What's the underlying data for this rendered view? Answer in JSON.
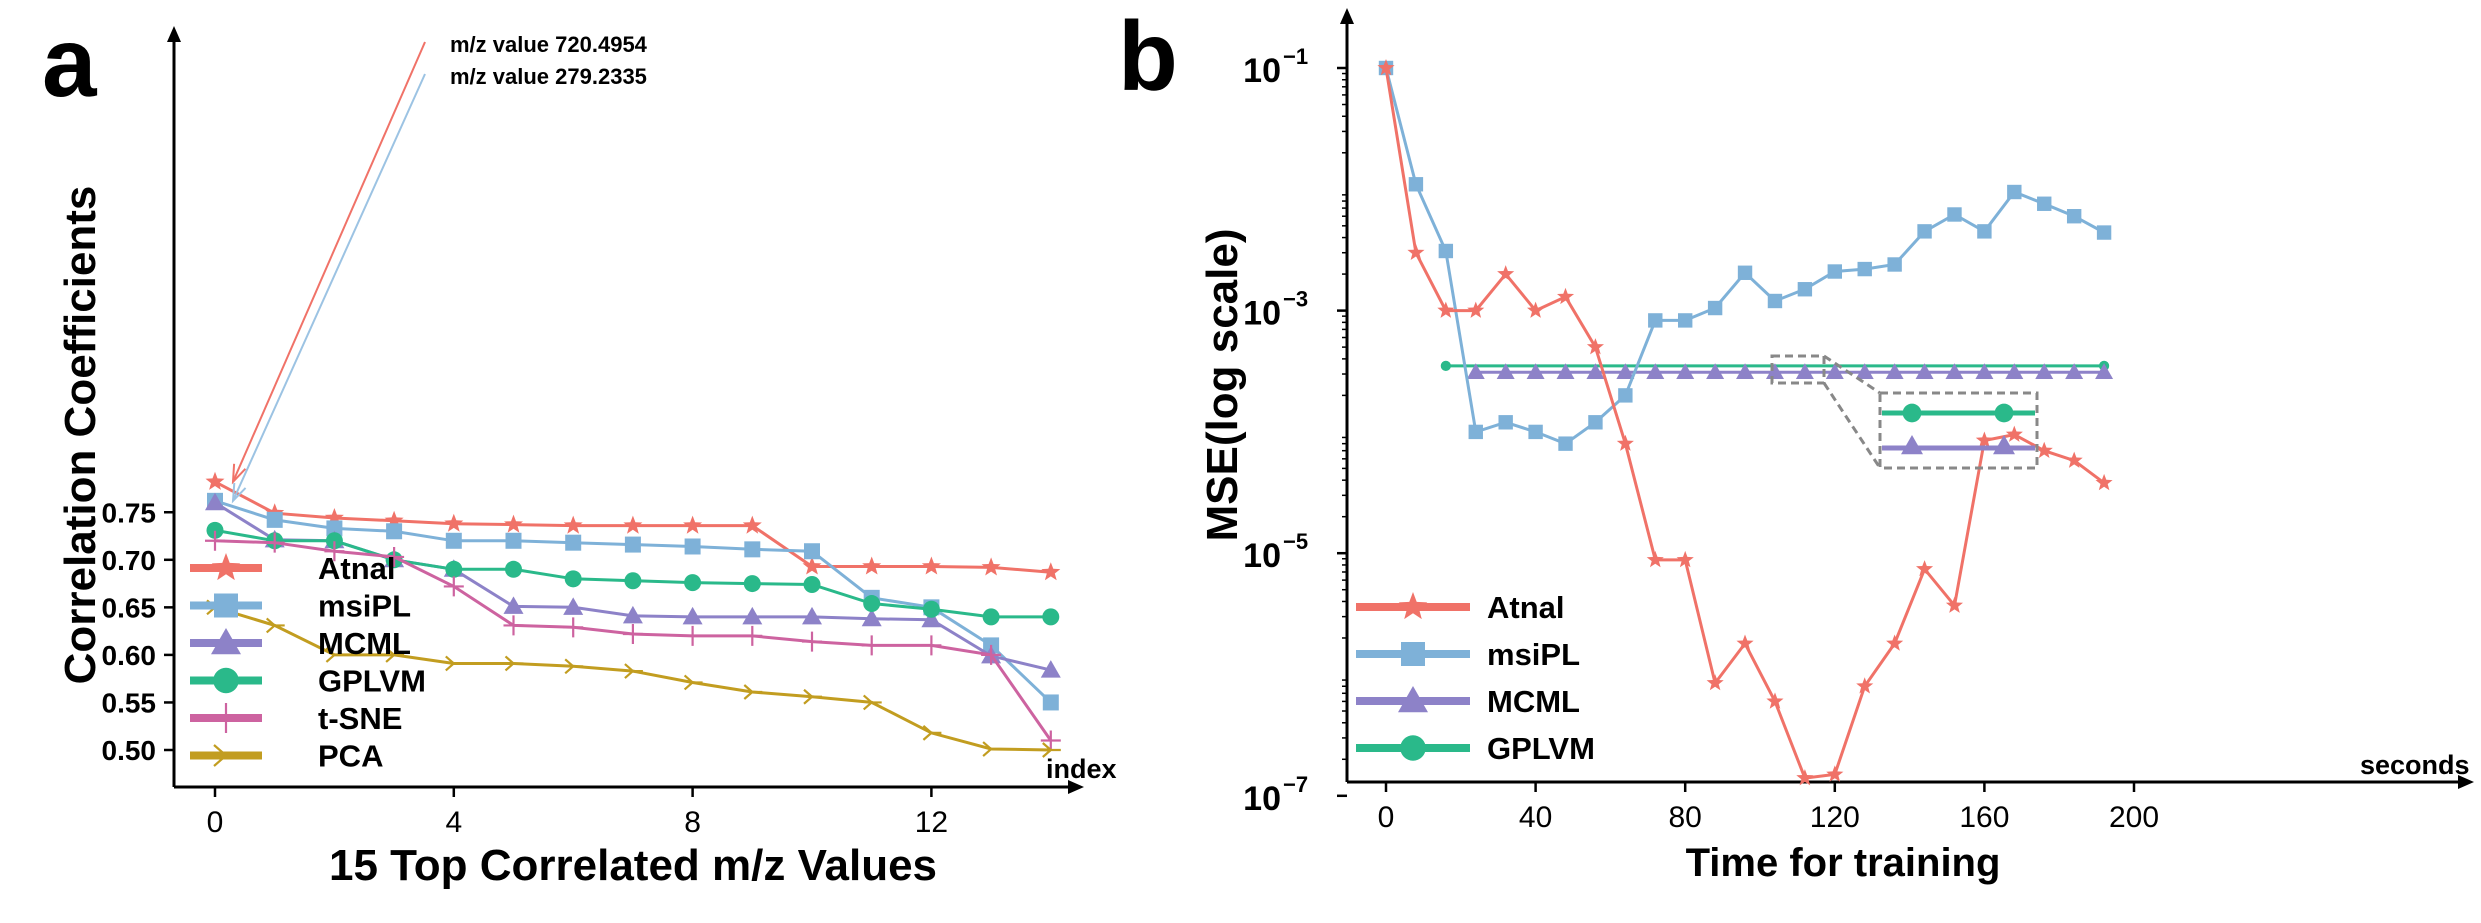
{
  "chart_data": [
    {
      "panel": "a",
      "type": "line",
      "xlabel": "15 Top Correlated m/z Values",
      "ylabel": "Correlation Coefficients",
      "x_end_label": "index",
      "xlim": [
        0,
        14
      ],
      "ylim": [
        0.497,
        0.79
      ],
      "xticks": [
        0,
        4,
        8,
        12
      ],
      "yticks": [
        0.5,
        0.55,
        0.6,
        0.65,
        0.7,
        0.75
      ],
      "x": [
        0,
        1,
        2,
        3,
        4,
        5,
        6,
        7,
        8,
        9,
        10,
        11,
        12,
        13,
        14
      ],
      "series": [
        {
          "name": "Atnal",
          "color": "#f07268",
          "marker": "star",
          "values": [
            0.782,
            0.749,
            0.744,
            0.741,
            0.738,
            0.737,
            0.736,
            0.736,
            0.736,
            0.736,
            0.693,
            0.693,
            0.693,
            0.692,
            0.687
          ]
        },
        {
          "name": "msiPL",
          "color": "#7eb1d8",
          "marker": "square",
          "values": [
            0.762,
            0.742,
            0.733,
            0.73,
            0.72,
            0.72,
            0.718,
            0.716,
            0.714,
            0.711,
            0.709,
            0.66,
            0.65,
            0.61,
            0.55
          ]
        },
        {
          "name": "MCML",
          "color": "#8d82c8",
          "marker": "triangle",
          "values": [
            0.76,
            0.721,
            0.72,
            0.7,
            0.69,
            0.651,
            0.65,
            0.641,
            0.64,
            0.64,
            0.64,
            0.638,
            0.637,
            0.599,
            0.584
          ]
        },
        {
          "name": "GPLVM",
          "color": "#2ab98a",
          "marker": "circle",
          "values": [
            0.731,
            0.72,
            0.72,
            0.7,
            0.69,
            0.69,
            0.68,
            0.678,
            0.676,
            0.675,
            0.674,
            0.654,
            0.648,
            0.64,
            0.64
          ]
        },
        {
          "name": "t-SNE",
          "color": "#cd63a0",
          "marker": "plus",
          "values": [
            0.72,
            0.718,
            0.709,
            0.703,
            0.672,
            0.631,
            0.629,
            0.622,
            0.62,
            0.62,
            0.614,
            0.61,
            0.61,
            0.6,
            0.51
          ]
        },
        {
          "name": "PCA",
          "color": "#c29d20",
          "marker": "tri",
          "values": [
            0.65,
            0.631,
            0.6,
            0.6,
            0.591,
            0.591,
            0.588,
            0.583,
            0.571,
            0.561,
            0.556,
            0.55,
            0.518,
            0.501,
            0.5
          ]
        }
      ],
      "annotations": [
        {
          "text": "m/z value 720.4954",
          "color": "#f07268",
          "x": 0,
          "y": 0.782
        },
        {
          "text": "m/z value 279.2335",
          "color": "#9cc3e3",
          "x": 0,
          "y": 0.762
        }
      ],
      "legend": "bottom-left"
    },
    {
      "panel": "b",
      "type": "line",
      "xlabel": "Time for training",
      "ylabel": "MSE(log scale)",
      "x_end_label": "seconds",
      "xlim": [
        0,
        200
      ],
      "y_scale": "log",
      "xticks": [
        0,
        40,
        80,
        120,
        160,
        200
      ],
      "ytick_labels": [
        "10",
        "10",
        "10",
        "10"
      ],
      "ytick_exponents": [
        "−1",
        "−3",
        "−5",
        "−7"
      ],
      "ytick_values": [
        0.1,
        0.001,
        1e-05,
        1e-07
      ],
      "series": [
        {
          "name": "Atnal",
          "color": "#f07268",
          "marker": "star",
          "x": [
            0,
            8,
            16,
            24,
            32,
            40,
            48,
            56,
            64,
            72,
            80,
            88,
            96,
            104,
            112,
            120,
            128,
            136,
            144,
            152,
            160,
            168,
            176,
            184,
            192
          ],
          "values": [
            0.1,
            0.003,
            0.001,
            0.001,
            0.002,
            0.001,
            0.0013,
            0.0005,
            8e-05,
            8.8e-06,
            8.8e-06,
            8.5e-07,
            1.8e-06,
            6e-07,
            1.4e-07,
            1.5e-07,
            8e-07,
            1.8e-06,
            7.4e-06,
            3.7e-06,
            8.5e-05,
            9.5e-05,
            7e-05,
            5.8e-05,
            3.8e-05
          ]
        },
        {
          "name": "msiPL",
          "color": "#7eb1d8",
          "marker": "square",
          "x": [
            0,
            8,
            16,
            24,
            32,
            40,
            48,
            56,
            64,
            72,
            80,
            88,
            96,
            104,
            112,
            120,
            128,
            136,
            144,
            152,
            160,
            168,
            176,
            184,
            192
          ],
          "values": [
            0.1,
            0.011,
            0.0031,
            0.0001,
            0.00012,
            0.0001,
            8e-05,
            0.00012,
            0.0002,
            0.00083,
            0.00083,
            0.00105,
            0.00205,
            0.0012,
            0.0015,
            0.0021,
            0.0022,
            0.0024,
            0.0045,
            0.0062,
            0.0045,
            0.0095,
            0.0076,
            0.006,
            0.0044
          ]
        },
        {
          "name": "MCML",
          "color": "#8d82c8",
          "marker": "triangle",
          "x": [
            24,
            32,
            40,
            48,
            56,
            64,
            72,
            80,
            88,
            96,
            104,
            112,
            120,
            128,
            136,
            144,
            152,
            160,
            168,
            176,
            184,
            192
          ],
          "values": [
            0.00031,
            0.00031,
            0.00031,
            0.00031,
            0.00031,
            0.00031,
            0.00031,
            0.00031,
            0.00031,
            0.00031,
            0.00031,
            0.00031,
            0.00031,
            0.00031,
            0.00031,
            0.00031,
            0.00031,
            0.00031,
            0.00031,
            0.00031,
            0.00031,
            0.00031
          ]
        },
        {
          "name": "GPLVM",
          "color": "#2ab98a",
          "marker": "circle",
          "x": [
            16,
            192
          ],
          "values": [
            0.00035,
            0.00035
          ]
        }
      ],
      "legend": "bottom-left"
    }
  ],
  "panels": {
    "a_label": "a",
    "b_label": "b"
  }
}
